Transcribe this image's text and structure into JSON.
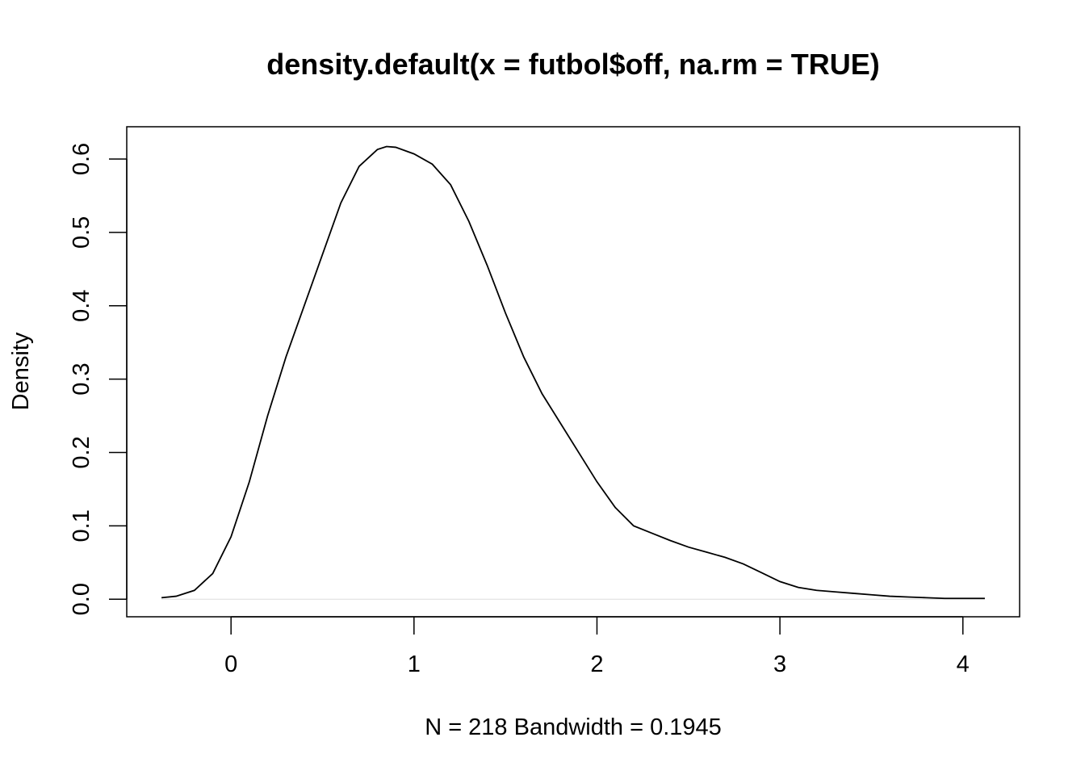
{
  "chart_data": {
    "type": "line",
    "title": "density.default(x = futbol$off, na.rm = TRUE)",
    "xlabel": "N = 218   Bandwidth = 0.1945",
    "ylabel": "Density",
    "xlim": [
      -0.57,
      4.31
    ],
    "ylim": [
      -0.024,
      0.644
    ],
    "x_ticks": [
      "0",
      "1",
      "2",
      "3",
      "4"
    ],
    "y_ticks": [
      "0.0",
      "0.1",
      "0.2",
      "0.3",
      "0.4",
      "0.5",
      "0.6"
    ],
    "grid": false,
    "legend": "none",
    "line_color": "#000000",
    "series": [
      {
        "x": [
          -0.38,
          -0.3,
          -0.2,
          -0.1,
          0.0,
          0.1,
          0.2,
          0.3,
          0.4,
          0.5,
          0.6,
          0.7,
          0.8,
          0.85,
          0.9,
          1.0,
          1.1,
          1.2,
          1.3,
          1.4,
          1.5,
          1.6,
          1.7,
          1.8,
          1.9,
          2.0,
          2.1,
          2.2,
          2.3,
          2.4,
          2.5,
          2.6,
          2.7,
          2.8,
          2.9,
          3.0,
          3.1,
          3.2,
          3.3,
          3.4,
          3.5,
          3.6,
          3.7,
          3.8,
          3.9,
          4.0,
          4.12
        ],
        "y": [
          0.002,
          0.004,
          0.012,
          0.035,
          0.085,
          0.16,
          0.25,
          0.33,
          0.4,
          0.47,
          0.54,
          0.59,
          0.613,
          0.617,
          0.616,
          0.607,
          0.593,
          0.565,
          0.515,
          0.455,
          0.39,
          0.33,
          0.28,
          0.24,
          0.2,
          0.16,
          0.125,
          0.1,
          0.09,
          0.08,
          0.071,
          0.064,
          0.057,
          0.048,
          0.036,
          0.024,
          0.016,
          0.012,
          0.01,
          0.008,
          0.006,
          0.004,
          0.003,
          0.002,
          0.001,
          0.001,
          0.001
        ]
      }
    ]
  }
}
